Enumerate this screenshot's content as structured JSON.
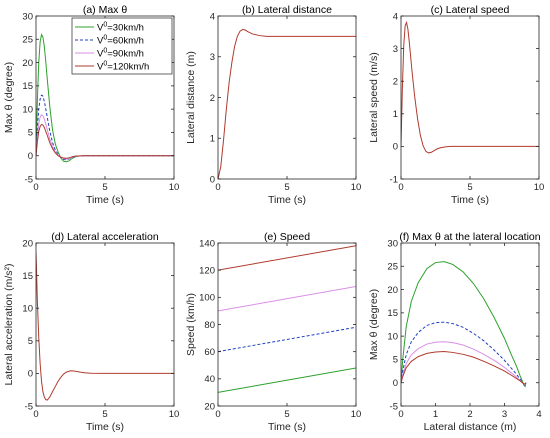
{
  "chart_data": [
    {
      "id": "a",
      "type": "line",
      "title": "(a) Max θ",
      "xlabel": "Time (s)",
      "ylabel": "Max θ (degree)",
      "xlim": [
        0,
        10
      ],
      "ylim": [
        -5,
        30
      ],
      "xticks": [
        0,
        5,
        10
      ],
      "yticks": [
        -5,
        0,
        5,
        10,
        15,
        20,
        25,
        30
      ],
      "legend": {
        "placement": "top-right",
        "entries": [
          {
            "sup": "0",
            "text": "=30km/h"
          },
          {
            "sup": "0",
            "text": "=60km/h"
          },
          {
            "sup": "0",
            "text": "=90km/h"
          },
          {
            "sup": "0",
            "text": "=120km/h"
          }
        ]
      },
      "series": [
        {
          "name": "V0=30km/h",
          "color": "#2ca02c",
          "dash": "",
          "x": [
            0,
            0.1,
            0.2,
            0.3,
            0.4,
            0.5,
            0.6,
            0.7,
            0.8,
            1.0,
            1.2,
            1.4,
            1.6,
            1.8,
            2.0,
            2.2,
            2.4,
            2.6,
            2.8,
            3.0,
            3.5,
            4,
            5,
            6,
            8,
            10
          ],
          "y": [
            0,
            12,
            20,
            24.5,
            26,
            25.5,
            23.5,
            20.5,
            17,
            10.5,
            5.5,
            2.5,
            0.8,
            -0.5,
            -1.2,
            -1.3,
            -1.1,
            -0.6,
            -0.3,
            -0.1,
            0,
            0,
            0,
            0,
            0,
            0
          ]
        },
        {
          "name": "V0=60km/h",
          "color": "#1f3fbf",
          "dash": "3,2",
          "x": [
            0,
            0.1,
            0.2,
            0.3,
            0.4,
            0.5,
            0.6,
            0.7,
            0.8,
            1.0,
            1.2,
            1.4,
            1.6,
            1.8,
            2.0,
            2.2,
            2.4,
            2.6,
            2.8,
            3.0,
            3.5,
            4,
            5,
            6,
            8,
            10
          ],
          "y": [
            0,
            6,
            10,
            12.2,
            13,
            12.8,
            11.7,
            10.2,
            8.5,
            5.3,
            2.8,
            1.2,
            0.3,
            -0.4,
            -0.8,
            -0.9,
            -0.7,
            -0.4,
            -0.2,
            -0.1,
            0,
            0,
            0,
            0,
            0,
            0
          ]
        },
        {
          "name": "V0=90km/h",
          "color": "#d98fe6",
          "dash": "",
          "x": [
            0,
            0.1,
            0.2,
            0.3,
            0.4,
            0.5,
            0.6,
            0.7,
            0.8,
            1.0,
            1.2,
            1.4,
            1.6,
            1.8,
            2.0,
            2.2,
            2.4,
            2.6,
            2.8,
            3.0,
            3.5,
            4,
            5,
            6,
            8,
            10
          ],
          "y": [
            0,
            4,
            6.8,
            8.3,
            8.8,
            8.6,
            7.9,
            6.9,
            5.8,
            3.6,
            1.9,
            0.8,
            0.1,
            -0.3,
            -0.6,
            -0.7,
            -0.6,
            -0.3,
            -0.15,
            -0.05,
            0,
            0,
            0,
            0,
            0,
            0
          ]
        },
        {
          "name": "V0=120km/h",
          "color": "#b03a2e",
          "dash": "",
          "x": [
            0,
            0.1,
            0.2,
            0.3,
            0.4,
            0.5,
            0.6,
            0.7,
            0.8,
            1.0,
            1.2,
            1.4,
            1.6,
            1.8,
            2.0,
            2.2,
            2.4,
            2.6,
            2.8,
            3.0,
            3.5,
            4,
            5,
            6,
            8,
            10
          ],
          "y": [
            0,
            3,
            5.2,
            6.3,
            6.7,
            6.6,
            6.1,
            5.3,
            4.5,
            2.8,
            1.5,
            0.6,
            0,
            -0.3,
            -0.5,
            -0.55,
            -0.45,
            -0.25,
            -0.1,
            -0.05,
            0,
            0,
            0,
            0,
            0,
            0
          ]
        }
      ]
    },
    {
      "id": "b",
      "type": "line",
      "title": "(b) Lateral distance",
      "xlabel": "Time (s)",
      "ylabel": "Lateral distance (m)",
      "xlim": [
        0,
        10
      ],
      "ylim": [
        0,
        4
      ],
      "xticks": [
        0,
        5,
        10
      ],
      "yticks": [
        0,
        1,
        2,
        3,
        4
      ],
      "series": [
        {
          "name": "",
          "color": "#b03a2e",
          "dash": "",
          "x": [
            0,
            0.2,
            0.4,
            0.6,
            0.8,
            1.0,
            1.2,
            1.4,
            1.6,
            1.8,
            2.0,
            2.2,
            2.5,
            3.0,
            3.5,
            4,
            5,
            6,
            8,
            10
          ],
          "y": [
            0,
            0.3,
            0.95,
            1.7,
            2.35,
            2.85,
            3.25,
            3.5,
            3.63,
            3.67,
            3.65,
            3.61,
            3.56,
            3.52,
            3.5,
            3.5,
            3.5,
            3.5,
            3.5,
            3.5
          ]
        }
      ]
    },
    {
      "id": "c",
      "type": "line",
      "title": "(c) Lateral speed",
      "xlabel": "Time (s)",
      "ylabel": "Lateral speed (m/s)",
      "xlim": [
        0,
        10
      ],
      "ylim": [
        -1,
        4
      ],
      "xticks": [
        0,
        5,
        10
      ],
      "yticks": [
        -1,
        0,
        1,
        2,
        3,
        4
      ],
      "series": [
        {
          "name": "",
          "color": "#b03a2e",
          "dash": "",
          "x": [
            0,
            0.1,
            0.2,
            0.3,
            0.4,
            0.5,
            0.6,
            0.7,
            0.8,
            1.0,
            1.2,
            1.4,
            1.6,
            1.8,
            2.0,
            2.2,
            2.4,
            2.6,
            2.8,
            3.0,
            3.3,
            3.6,
            4,
            5,
            6,
            8,
            10
          ],
          "y": [
            0,
            1.8,
            3.1,
            3.7,
            3.8,
            3.6,
            3.2,
            2.75,
            2.3,
            1.5,
            0.85,
            0.35,
            0.02,
            -0.15,
            -0.2,
            -0.18,
            -0.13,
            -0.08,
            -0.05,
            -0.03,
            -0.01,
            0,
            0,
            0,
            0,
            0,
            0
          ]
        }
      ]
    },
    {
      "id": "d",
      "type": "line",
      "title": "(d) Lateral acceleration",
      "xlabel": "Time (s)",
      "ylabel": "Lateral acceleration (m/s²)",
      "xlim": [
        0,
        10
      ],
      "ylim": [
        -5,
        20
      ],
      "xticks": [
        0,
        5,
        10
      ],
      "yticks": [
        -5,
        0,
        5,
        10,
        15,
        20
      ],
      "series": [
        {
          "name": "",
          "color": "#b03a2e",
          "dash": "",
          "x": [
            0,
            0.05,
            0.1,
            0.2,
            0.3,
            0.4,
            0.5,
            0.6,
            0.7,
            0.8,
            0.9,
            1.0,
            1.2,
            1.4,
            1.6,
            1.8,
            2.0,
            2.2,
            2.5,
            2.8,
            3.2,
            3.6,
            4,
            5,
            6,
            8,
            10
          ],
          "y": [
            18.5,
            15,
            11,
            5.5,
            1.5,
            -1.2,
            -2.8,
            -3.6,
            -4.0,
            -4.1,
            -3.9,
            -3.6,
            -2.8,
            -2.0,
            -1.2,
            -0.6,
            -0.1,
            0.2,
            0.4,
            0.35,
            0.2,
            0.08,
            0.02,
            0,
            0,
            0,
            0
          ]
        }
      ]
    },
    {
      "id": "e",
      "type": "line",
      "title": "(e) Speed",
      "xlabel": "Time (s)",
      "ylabel": "Speed (km/h)",
      "xlim": [
        0,
        10
      ],
      "ylim": [
        20,
        140
      ],
      "xticks": [
        0,
        5,
        10
      ],
      "yticks": [
        20,
        40,
        60,
        80,
        100,
        120,
        140
      ],
      "series": [
        {
          "name": "V0=30km/h",
          "color": "#2ca02c",
          "dash": "",
          "x": [
            0,
            10
          ],
          "y": [
            30,
            48
          ]
        },
        {
          "name": "V0=60km/h",
          "color": "#1f3fbf",
          "dash": "3,2",
          "x": [
            0,
            10
          ],
          "y": [
            60,
            78
          ]
        },
        {
          "name": "V0=90km/h",
          "color": "#d98fe6",
          "dash": "",
          "x": [
            0,
            10
          ],
          "y": [
            90,
            108
          ]
        },
        {
          "name": "V0=120km/h",
          "color": "#b03a2e",
          "dash": "",
          "x": [
            0,
            10
          ],
          "y": [
            120,
            138
          ]
        }
      ]
    },
    {
      "id": "f",
      "type": "line",
      "title": "(f) Max θ at the lateral location",
      "xlabel": "Lateral distance (m)",
      "ylabel": "Max θ (degree)",
      "xlim": [
        0,
        4
      ],
      "ylim": [
        -5,
        30
      ],
      "xticks": [
        0,
        1,
        2,
        3,
        4
      ],
      "yticks": [
        -5,
        0,
        5,
        10,
        15,
        20,
        25,
        30
      ],
      "series": [
        {
          "name": "V0=30km/h",
          "color": "#2ca02c",
          "dash": "",
          "x": [
            0,
            0.05,
            0.15,
            0.3,
            0.5,
            0.75,
            1.0,
            1.25,
            1.5,
            1.8,
            2.1,
            2.4,
            2.7,
            3.0,
            3.2,
            3.35,
            3.45,
            3.52,
            3.56,
            3.6,
            3.62
          ],
          "y": [
            0,
            5,
            12,
            17.5,
            21.5,
            24.5,
            25.8,
            26,
            25.4,
            23.8,
            21.3,
            18,
            14,
            9.5,
            6,
            3.5,
            1.5,
            0.3,
            -0.5,
            -0.8,
            0
          ]
        },
        {
          "name": "V0=60km/h",
          "color": "#1f3fbf",
          "dash": "3,2",
          "x": [
            0,
            0.05,
            0.15,
            0.3,
            0.5,
            0.75,
            1.0,
            1.25,
            1.5,
            1.8,
            2.1,
            2.4,
            2.7,
            3.0,
            3.2,
            3.35,
            3.45,
            3.52,
            3.56,
            3.6,
            3.62
          ],
          "y": [
            0,
            2.5,
            6,
            8.8,
            10.8,
            12.3,
            12.9,
            13,
            12.7,
            11.9,
            10.6,
            9,
            7,
            4.8,
            3.1,
            1.8,
            0.8,
            0.1,
            -0.4,
            -0.6,
            0
          ]
        },
        {
          "name": "V0=90km/h",
          "color": "#d98fe6",
          "dash": "",
          "x": [
            0,
            0.05,
            0.15,
            0.3,
            0.5,
            0.75,
            1.0,
            1.25,
            1.5,
            1.8,
            2.1,
            2.4,
            2.7,
            3.0,
            3.2,
            3.35,
            3.45,
            3.52,
            3.56,
            3.6,
            3.62
          ],
          "y": [
            0,
            1.7,
            4.1,
            6,
            7.3,
            8.3,
            8.7,
            8.8,
            8.6,
            8.1,
            7.2,
            6.1,
            4.8,
            3.3,
            2.1,
            1.2,
            0.5,
            0,
            -0.3,
            -0.4,
            0
          ]
        },
        {
          "name": "V0=120km/h",
          "color": "#b03a2e",
          "dash": "",
          "x": [
            0,
            0.05,
            0.15,
            0.3,
            0.5,
            0.75,
            1.0,
            1.25,
            1.5,
            1.8,
            2.1,
            2.4,
            2.7,
            3.0,
            3.2,
            3.35,
            3.45,
            3.52,
            3.56,
            3.6,
            3.62
          ],
          "y": [
            0,
            1.3,
            3.2,
            4.6,
            5.6,
            6.3,
            6.6,
            6.7,
            6.5,
            6.1,
            5.5,
            4.6,
            3.6,
            2.5,
            1.6,
            0.9,
            0.4,
            0,
            -0.2,
            -0.3,
            0
          ]
        }
      ]
    }
  ]
}
